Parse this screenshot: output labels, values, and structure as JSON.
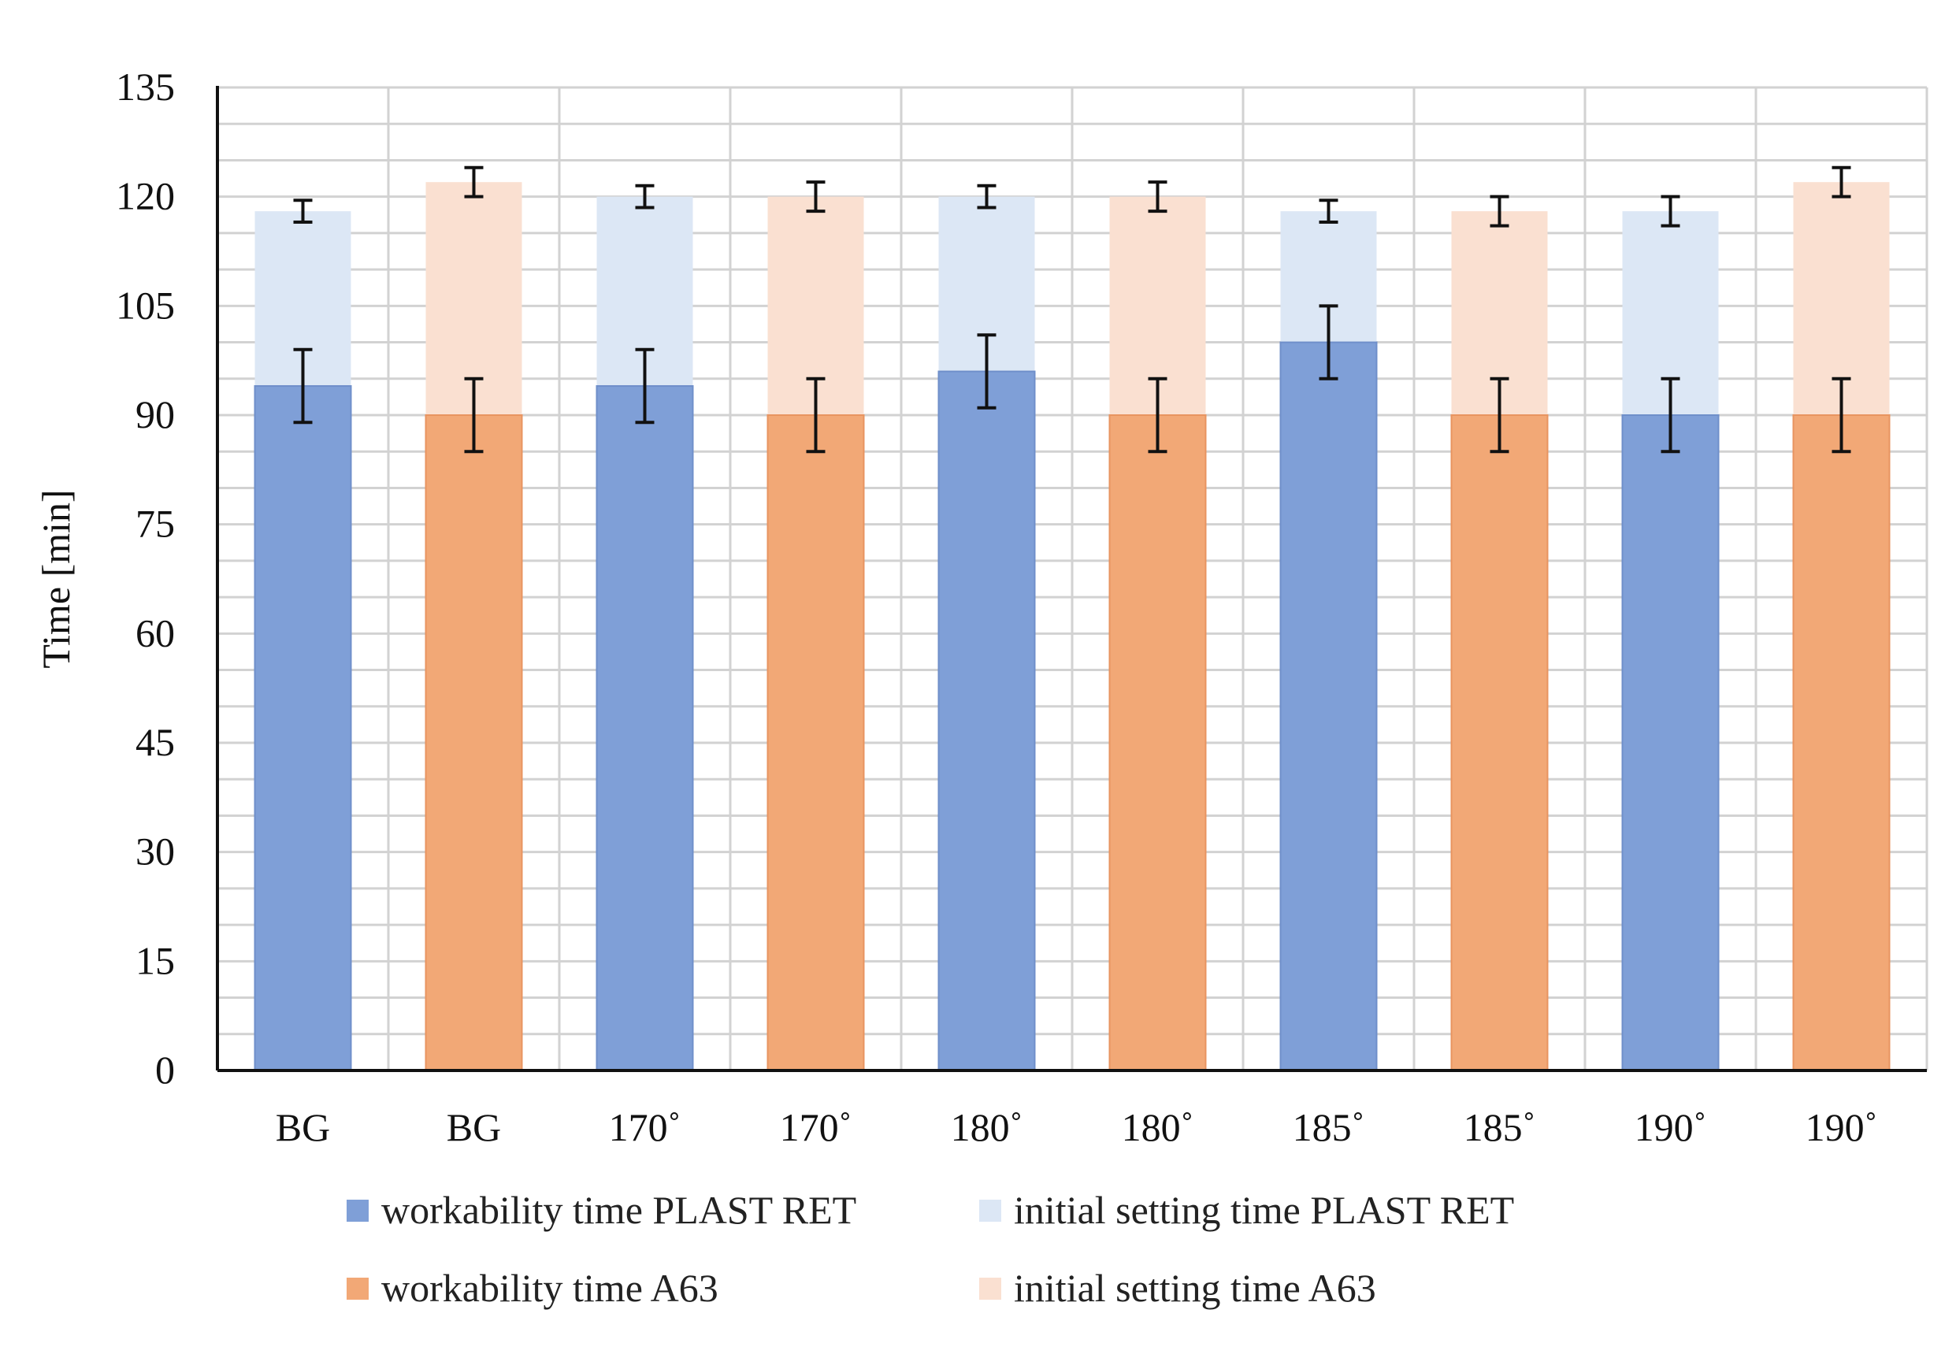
{
  "chart_data": {
    "type": "bar",
    "stacked": true,
    "categories": [
      "BG",
      "BG",
      "170˚",
      "170˚",
      "180˚",
      "180˚",
      "185˚",
      "185˚",
      "190˚",
      "190˚"
    ],
    "ylabel": "Time  [min]",
    "xlabel": "",
    "ylim": [
      0,
      135
    ],
    "yticks": [
      0,
      15,
      30,
      45,
      60,
      75,
      90,
      105,
      120,
      135
    ],
    "grid": true,
    "legend_position": "bottom",
    "series_meta": [
      {
        "name": "workability time PLAST RET",
        "color": "#7f9fd7"
      },
      {
        "name": "initial setting time PLAST RET",
        "color": "#dce7f5"
      },
      {
        "name": "workability time A63",
        "color": "#f2a876"
      },
      {
        "name": "initial setting time A63",
        "color": "#fae0d1"
      }
    ],
    "bars": [
      {
        "family": "PLAST RET",
        "workability": 94,
        "workability_err": 5,
        "initial_setting": 118,
        "initial_setting_err": 1.5
      },
      {
        "family": "A63",
        "workability": 90,
        "workability_err": 5,
        "initial_setting": 122,
        "initial_setting_err": 2
      },
      {
        "family": "PLAST RET",
        "workability": 94,
        "workability_err": 5,
        "initial_setting": 120,
        "initial_setting_err": 1.5
      },
      {
        "family": "A63",
        "workability": 90,
        "workability_err": 5,
        "initial_setting": 120,
        "initial_setting_err": 2
      },
      {
        "family": "PLAST RET",
        "workability": 96,
        "workability_err": 5,
        "initial_setting": 120,
        "initial_setting_err": 1.5
      },
      {
        "family": "A63",
        "workability": 90,
        "workability_err": 5,
        "initial_setting": 120,
        "initial_setting_err": 2
      },
      {
        "family": "PLAST RET",
        "workability": 100,
        "workability_err": 5,
        "initial_setting": 118,
        "initial_setting_err": 1.5
      },
      {
        "family": "A63",
        "workability": 90,
        "workability_err": 5,
        "initial_setting": 118,
        "initial_setting_err": 2
      },
      {
        "family": "PLAST RET",
        "workability": 90,
        "workability_err": 5,
        "initial_setting": 118,
        "initial_setting_err": 2
      },
      {
        "family": "A63",
        "workability": 90,
        "workability_err": 5,
        "initial_setting": 122,
        "initial_setting_err": 2
      }
    ]
  }
}
